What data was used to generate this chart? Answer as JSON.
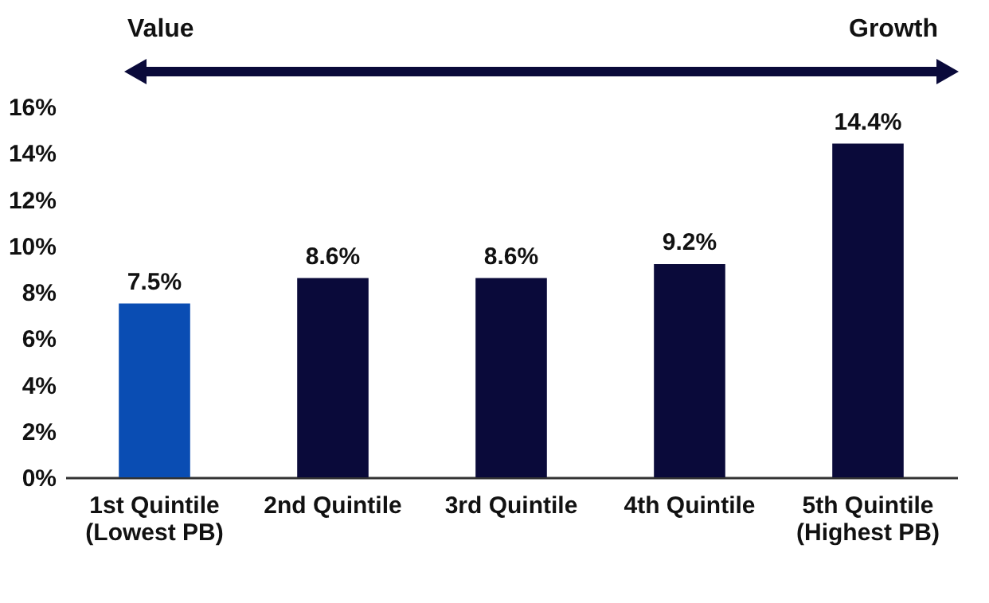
{
  "chart_data": {
    "type": "bar",
    "categories": [
      "1st Quintile\n(Lowest PB)",
      "2nd Quintile",
      "3rd Quintile",
      "4th Quintile",
      "5th Quintile\n(Highest PB)"
    ],
    "values": [
      7.5,
      8.6,
      8.6,
      9.2,
      14.4
    ],
    "colors": [
      "#0a4db3",
      "#0a0a3a",
      "#0a0a3a",
      "#0a0a3a",
      "#0a0a3a"
    ],
    "value_labels": [
      "7.5%",
      "8.6%",
      "8.6%",
      "9.2%",
      "14.4%"
    ],
    "ylim": [
      0,
      16
    ],
    "yticks": [
      {
        "value": 0,
        "label": "0%"
      },
      {
        "value": 2,
        "label": "2%"
      },
      {
        "value": 4,
        "label": "4%"
      },
      {
        "value": 6,
        "label": "6%"
      },
      {
        "value": 8,
        "label": "8%"
      },
      {
        "value": 10,
        "label": "10%"
      },
      {
        "value": 12,
        "label": "12%"
      },
      {
        "value": 14,
        "label": "14%"
      },
      {
        "value": 16,
        "label": "16%"
      }
    ],
    "annotations": [
      "Value",
      "Growth"
    ],
    "grid": false
  }
}
